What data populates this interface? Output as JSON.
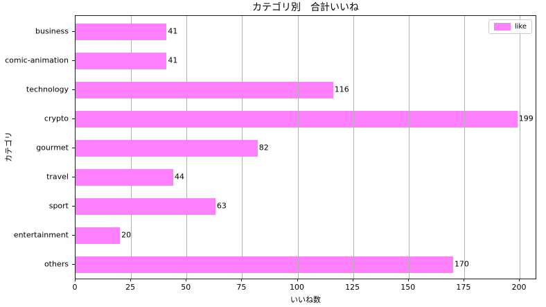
{
  "chart_data": {
    "type": "bar",
    "orientation": "horizontal",
    "title": "カテゴリ別　合計いいね",
    "xlabel": "いいね数",
    "ylabel": "カテゴリ",
    "categories": [
      "business",
      "comic-animation",
      "technology",
      "crypto",
      "gourmet",
      "travel",
      "sport",
      "entertainment",
      "others"
    ],
    "values": [
      41,
      41,
      116,
      199,
      82,
      44,
      63,
      20,
      170
    ],
    "series": [
      {
        "name": "like",
        "values": [
          41,
          41,
          116,
          199,
          82,
          44,
          63,
          20,
          170
        ]
      }
    ],
    "x_ticks": [
      0,
      25,
      50,
      75,
      100,
      125,
      150,
      175,
      200
    ],
    "xlim": [
      0,
      207.8
    ],
    "grid": true,
    "grid_on_top": true,
    "legend_position": "upper right",
    "colors": {
      "bar": "#ff80ff",
      "grid": "#b0b0b0",
      "spine": "#1a1a1a",
      "text": "#000000",
      "legend_edge": "#cccccc"
    }
  }
}
